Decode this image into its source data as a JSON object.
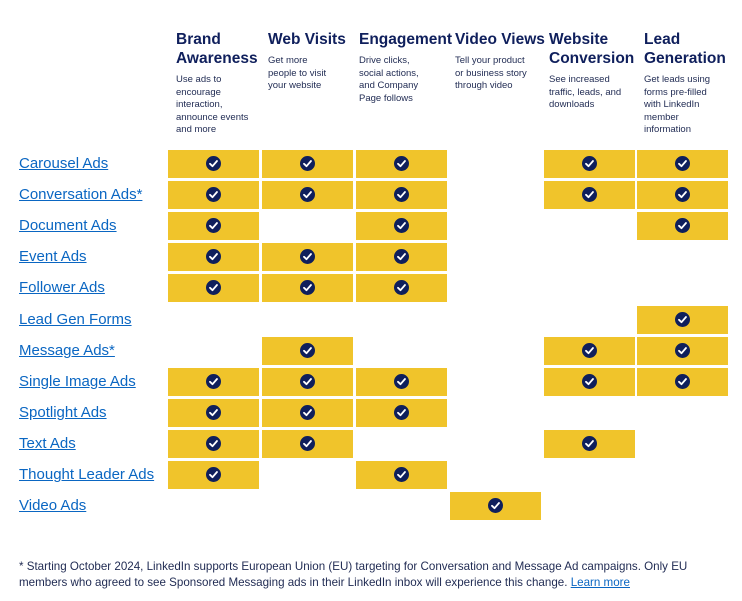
{
  "columns": [
    {
      "title": "Brand\nAwareness",
      "desc": "Use ads to\nencourage\ninteraction,\nannounce events\nand more"
    },
    {
      "title": "Web Visits",
      "desc": "Get more\npeople to visit\nyour website"
    },
    {
      "title": "Engagement",
      "desc": "Drive clicks,\nsocial actions,\nand Company\nPage follows"
    },
    {
      "title": "Video Views",
      "desc": "Tell your product\nor business story\nthrough video"
    },
    {
      "title": "Website\nConversion",
      "desc": "See increased\ntraffic, leads, and\ndownloads"
    },
    {
      "title": "Lead\nGeneration",
      "desc": "Get leads using\nforms pre-filled\nwith LinkedIn\nmember\ninformation"
    }
  ],
  "rows": [
    {
      "label": "Carousel Ads",
      "checks": [
        true,
        true,
        true,
        false,
        true,
        true
      ]
    },
    {
      "label": "Conversation Ads*",
      "checks": [
        true,
        true,
        true,
        false,
        true,
        true
      ]
    },
    {
      "label": "Document Ads",
      "checks": [
        true,
        false,
        true,
        false,
        false,
        true
      ]
    },
    {
      "label": "Event Ads",
      "checks": [
        true,
        true,
        true,
        false,
        false,
        false
      ]
    },
    {
      "label": "Follower Ads",
      "checks": [
        true,
        true,
        true,
        false,
        false,
        false
      ]
    },
    {
      "label": "Lead Gen Forms",
      "checks": [
        false,
        false,
        false,
        false,
        false,
        true
      ]
    },
    {
      "label": "Message Ads*",
      "checks": [
        false,
        true,
        false,
        false,
        true,
        true
      ]
    },
    {
      "label": "Single Image Ads",
      "checks": [
        true,
        true,
        true,
        false,
        true,
        true
      ]
    },
    {
      "label": "Spotlight Ads",
      "checks": [
        true,
        true,
        true,
        false,
        false,
        false
      ]
    },
    {
      "label": "Text Ads",
      "checks": [
        true,
        true,
        false,
        false,
        true,
        false
      ]
    },
    {
      "label": "Thought Leader Ads",
      "checks": [
        true,
        false,
        true,
        false,
        false,
        false
      ]
    },
    {
      "label": "Video Ads",
      "checks": [
        false,
        false,
        false,
        true,
        false,
        false
      ]
    }
  ],
  "footnote": {
    "text": "* Starting October 2024, LinkedIn supports European Union (EU) targeting for Conversation and Message Ad campaigns. Only EU members who agreed to see Sponsored Messaging ads in their LinkedIn inbox will experience this change.",
    "link": "Learn more"
  },
  "colors": {
    "cell": "#f0c42b",
    "check": "#0f1f5c",
    "link": "#0a66c2"
  },
  "icons": {
    "check": "check-circle-icon"
  }
}
